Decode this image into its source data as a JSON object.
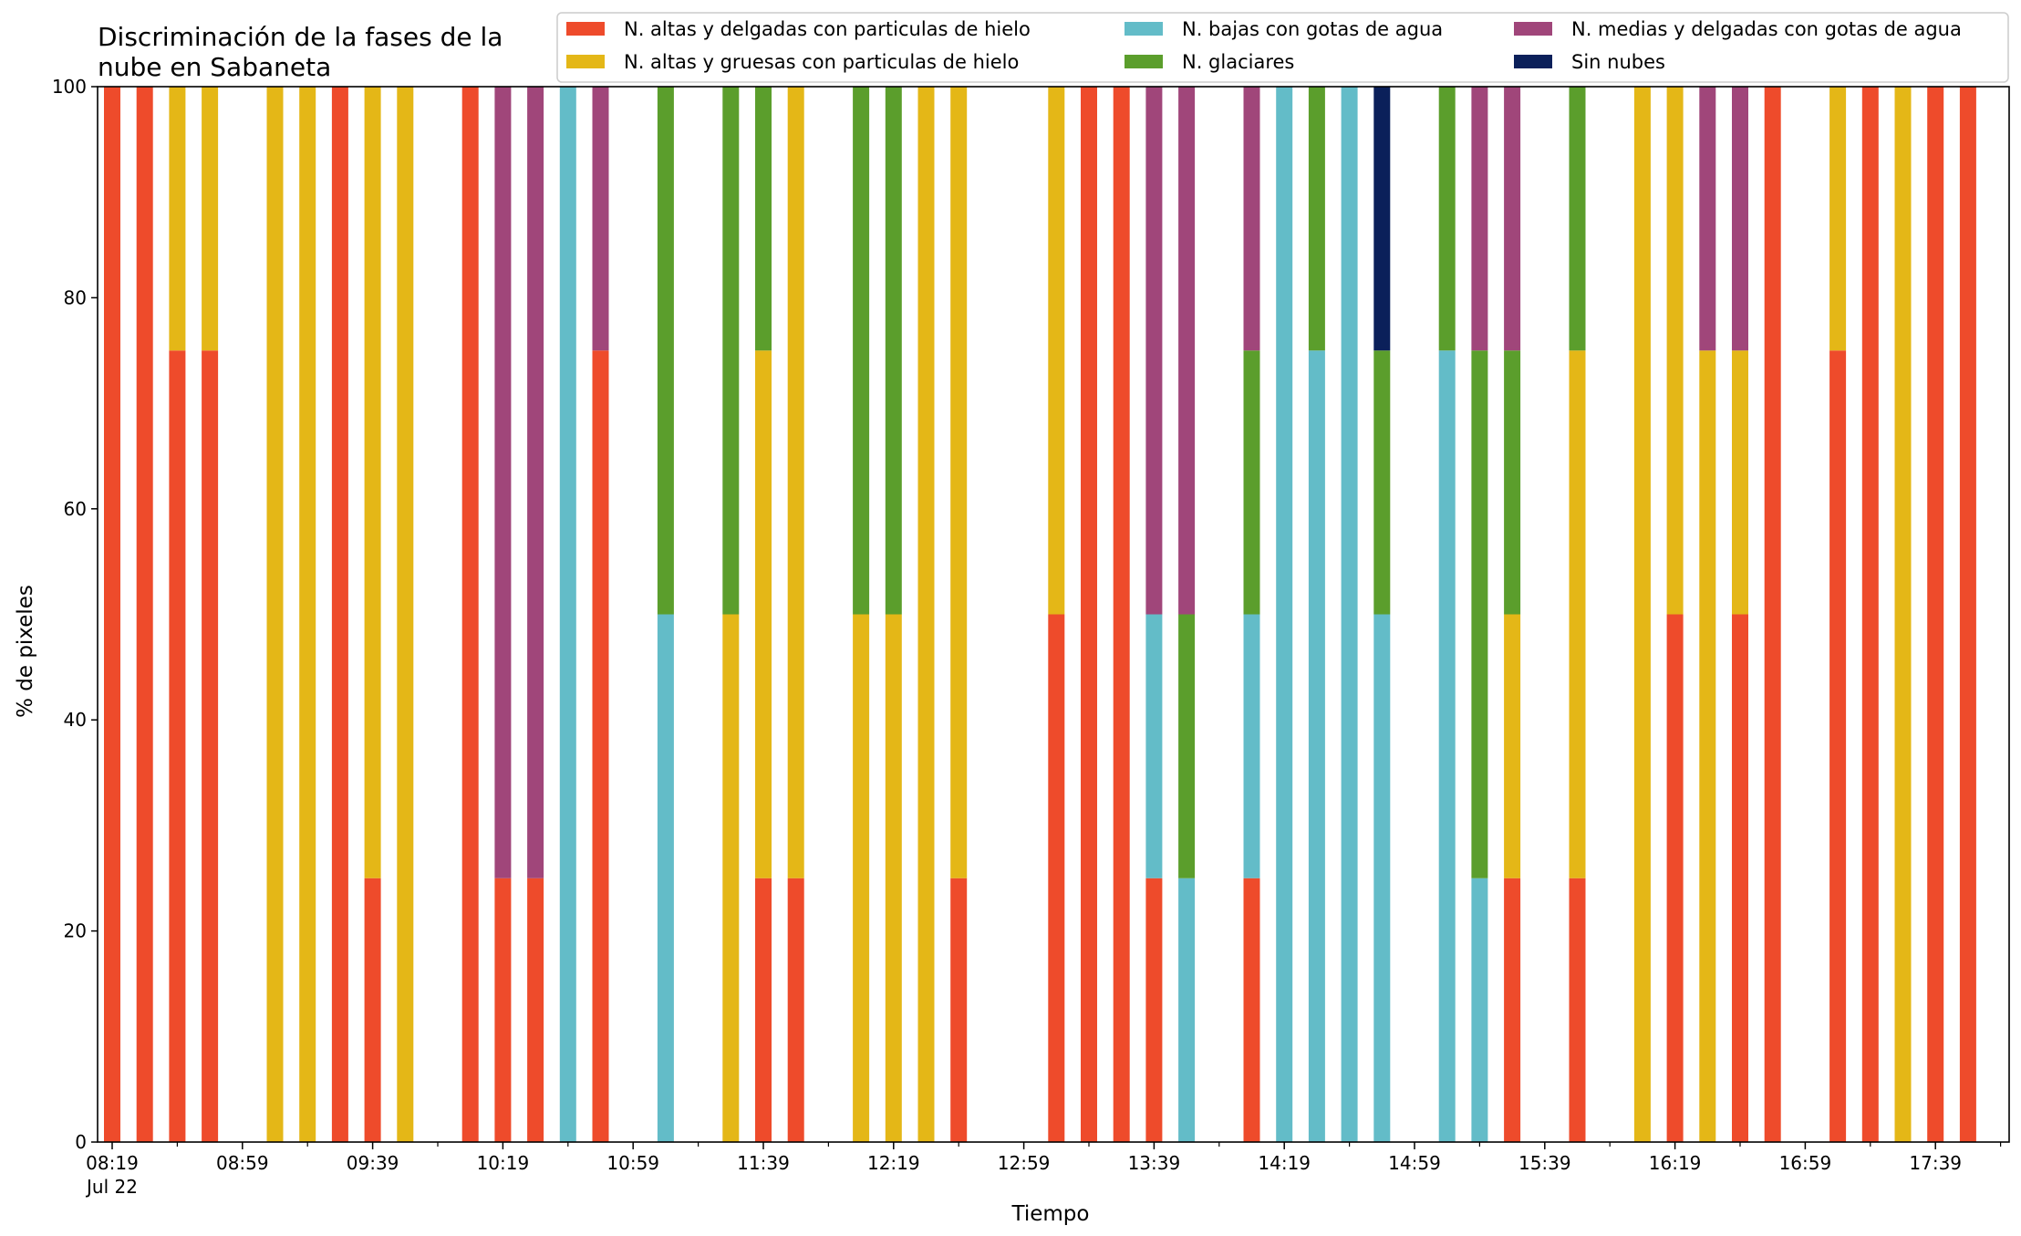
{
  "chart_data": {
    "type": "bar",
    "stacked": true,
    "title": "Discriminación de la fases de la nube en Sabaneta",
    "title_lines": [
      "Discriminación de la fases de la",
      "nube en Sabaneta"
    ],
    "xlabel": "Tiempo",
    "ylabel": "% de pixeles",
    "ylim": [
      0,
      100
    ],
    "yticks": [
      0,
      20,
      40,
      60,
      80,
      100
    ],
    "x_tick_labels": [
      "08:19",
      "08:59",
      "09:39",
      "10:19",
      "10:59",
      "11:39",
      "12:19",
      "12:59",
      "13:39",
      "14:19",
      "14:59",
      "15:39",
      "16:19",
      "16:59",
      "17:39"
    ],
    "x_date_label": "Jul 22",
    "x_major_tick_slots": [
      0,
      4,
      8,
      12,
      16,
      20,
      24,
      28,
      32,
      36,
      40,
      44,
      48,
      52,
      56
    ],
    "x_minor_ticks_between": 1,
    "slot_interval_minutes": 10,
    "legend_position": "upper-right",
    "series": [
      {
        "name": "N. altas y delgadas con particulas de hielo",
        "color": "#ee4b2b"
      },
      {
        "name": "N. altas y gruesas con particulas de hielo",
        "color": "#e4b717"
      },
      {
        "name": "N. bajas con gotas de agua",
        "color": "#63bcc8"
      },
      {
        "name": "N. glaciares",
        "color": "#5b9e2c"
      },
      {
        "name": "N. medias y delgadas con gotas de agua",
        "color": "#a0467a"
      },
      {
        "name": "Sin nubes",
        "color": "#0b205a"
      }
    ],
    "bars": [
      {
        "time": "08:19",
        "values": [
          100,
          0,
          0,
          0,
          0,
          0
        ]
      },
      {
        "time": "08:29",
        "values": [
          100,
          0,
          0,
          0,
          0,
          0
        ]
      },
      {
        "time": "08:39",
        "values": [
          75,
          25,
          0,
          0,
          0,
          0
        ]
      },
      {
        "time": "08:49",
        "values": [
          75,
          25,
          0,
          0,
          0,
          0
        ]
      },
      {
        "time": "09:09",
        "values": [
          0,
          100,
          0,
          0,
          0,
          0
        ]
      },
      {
        "time": "09:19",
        "values": [
          0,
          100,
          0,
          0,
          0,
          0
        ]
      },
      {
        "time": "09:29",
        "values": [
          100,
          0,
          0,
          0,
          0,
          0
        ]
      },
      {
        "time": "09:39",
        "values": [
          25,
          75,
          0,
          0,
          0,
          0
        ]
      },
      {
        "time": "09:49",
        "values": [
          0,
          100,
          0,
          0,
          0,
          0
        ]
      },
      {
        "time": "10:09",
        "values": [
          100,
          0,
          0,
          0,
          0,
          0
        ]
      },
      {
        "time": "10:19",
        "values": [
          25,
          0,
          0,
          0,
          75,
          0
        ]
      },
      {
        "time": "10:29",
        "values": [
          25,
          0,
          0,
          0,
          75,
          0
        ]
      },
      {
        "time": "10:39",
        "values": [
          0,
          0,
          100,
          0,
          0,
          0
        ]
      },
      {
        "time": "10:49",
        "values": [
          75,
          0,
          0,
          0,
          25,
          0
        ]
      },
      {
        "time": "11:09",
        "values": [
          0,
          0,
          50,
          50,
          0,
          0
        ]
      },
      {
        "time": "11:29",
        "values": [
          0,
          50,
          0,
          50,
          0,
          0
        ]
      },
      {
        "time": "11:39",
        "values": [
          25,
          50,
          0,
          25,
          0,
          0
        ]
      },
      {
        "time": "11:49",
        "values": [
          25,
          75,
          0,
          0,
          0,
          0
        ]
      },
      {
        "time": "12:09",
        "values": [
          0,
          50,
          0,
          50,
          0,
          0
        ]
      },
      {
        "time": "12:19",
        "values": [
          0,
          50,
          0,
          50,
          0,
          0
        ]
      },
      {
        "time": "12:29",
        "values": [
          0,
          100,
          0,
          0,
          0,
          0
        ]
      },
      {
        "time": "12:39",
        "values": [
          25,
          75,
          0,
          0,
          0,
          0
        ]
      },
      {
        "time": "13:09",
        "values": [
          50,
          50,
          0,
          0,
          0,
          0
        ]
      },
      {
        "time": "13:19",
        "values": [
          100,
          0,
          0,
          0,
          0,
          0
        ]
      },
      {
        "time": "13:29",
        "values": [
          100,
          0,
          0,
          0,
          0,
          0
        ]
      },
      {
        "time": "13:39",
        "values": [
          25,
          0,
          25,
          0,
          50,
          0
        ]
      },
      {
        "time": "13:49",
        "values": [
          0,
          0,
          25,
          25,
          50,
          0
        ]
      },
      {
        "time": "14:09",
        "values": [
          25,
          0,
          25,
          25,
          25,
          0
        ]
      },
      {
        "time": "14:19",
        "values": [
          0,
          0,
          100,
          0,
          0,
          0
        ]
      },
      {
        "time": "14:29",
        "values": [
          0,
          0,
          75,
          25,
          0,
          0
        ]
      },
      {
        "time": "14:39",
        "values": [
          0,
          0,
          100,
          0,
          0,
          0
        ]
      },
      {
        "time": "14:49",
        "values": [
          0,
          0,
          50,
          25,
          0,
          25
        ]
      },
      {
        "time": "15:09",
        "values": [
          0,
          0,
          75,
          25,
          0,
          0
        ]
      },
      {
        "time": "15:19",
        "values": [
          0,
          0,
          25,
          50,
          25,
          0
        ]
      },
      {
        "time": "15:29",
        "values": [
          25,
          25,
          0,
          25,
          25,
          0
        ]
      },
      {
        "time": "15:49",
        "values": [
          25,
          50,
          0,
          25,
          0,
          0
        ]
      },
      {
        "time": "16:09",
        "values": [
          0,
          100,
          0,
          0,
          0,
          0
        ]
      },
      {
        "time": "16:19",
        "values": [
          50,
          50,
          0,
          0,
          0,
          0
        ]
      },
      {
        "time": "16:29",
        "values": [
          0,
          75,
          0,
          0,
          25,
          0
        ]
      },
      {
        "time": "16:39",
        "values": [
          50,
          25,
          0,
          0,
          25,
          0
        ]
      },
      {
        "time": "16:49",
        "values": [
          100,
          0,
          0,
          0,
          0,
          0
        ]
      },
      {
        "time": "17:09",
        "values": [
          75,
          25,
          0,
          0,
          0,
          0
        ]
      },
      {
        "time": "17:19",
        "values": [
          100,
          0,
          0,
          0,
          0,
          0
        ]
      },
      {
        "time": "17:29",
        "values": [
          0,
          100,
          0,
          0,
          0,
          0
        ]
      },
      {
        "time": "17:39",
        "values": [
          100,
          0,
          0,
          0,
          0,
          0
        ]
      },
      {
        "time": "17:49",
        "values": [
          100,
          0,
          0,
          0,
          0,
          0
        ]
      }
    ]
  }
}
